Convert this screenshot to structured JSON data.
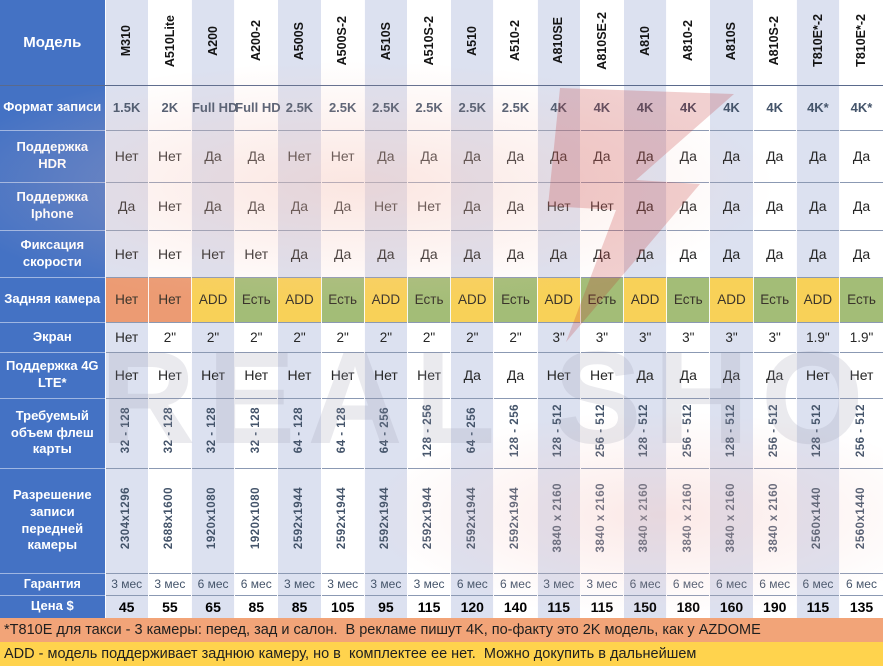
{
  "chart_data": {
    "type": "table",
    "title": "Сравнение моделей видеорегистраторов",
    "corner_label": "Модель",
    "columns": [
      "M310",
      "A510Lite",
      "A200",
      "A200-2",
      "A500S",
      "A500S-2",
      "A510S",
      "A510S-2",
      "A510",
      "A510-2",
      "A810SE",
      "A810SE-2",
      "A810",
      "A810-2",
      "A810S",
      "A810S-2",
      "T810E*-2",
      "T810E*-2"
    ],
    "rows": [
      {
        "label": "Формат записи",
        "type": "format",
        "values": [
          "1.5K",
          "2K",
          "Full HD",
          "Full HD",
          "2.5K",
          "2.5K",
          "2.5K",
          "2.5K",
          "2.5K",
          "2.5K",
          "4K",
          "4K",
          "4K",
          "4K",
          "4K",
          "4K",
          "4K*",
          "4K*"
        ]
      },
      {
        "label": "Поддержка HDR",
        "type": "hdr",
        "values": [
          "Нет",
          "Нет",
          "Да",
          "Да",
          "Нет",
          "Нет",
          "Да",
          "Да",
          "Да",
          "Да",
          "Да",
          "Да",
          "Да",
          "Да",
          "Да",
          "Да",
          "Да",
          "Да"
        ]
      },
      {
        "label": "Поддержка Iphone",
        "type": "iphone",
        "values": [
          "Да",
          "Нет",
          "Да",
          "Да",
          "Да",
          "Да",
          "Нет",
          "Нет",
          "Да",
          "Да",
          "Нет",
          "Нет",
          "Да",
          "Да",
          "Да",
          "Да",
          "Да",
          "Да"
        ]
      },
      {
        "label": "Фиксация скорости",
        "type": "speed",
        "values": [
          "Нет",
          "Нет",
          "Нет",
          "Нет",
          "Да",
          "Да",
          "Да",
          "Да",
          "Да",
          "Да",
          "Да",
          "Да",
          "Да",
          "Да",
          "Да",
          "Да",
          "Да",
          "Да"
        ]
      },
      {
        "label": "Задняя камера",
        "type": "camera",
        "values": [
          "Нет",
          "Нет",
          "ADD",
          "Есть",
          "ADD",
          "Есть",
          "ADD",
          "Есть",
          "ADD",
          "Есть",
          "ADD",
          "Есть",
          "ADD",
          "Есть",
          "ADD",
          "Есть",
          "ADD",
          "Есть"
        ],
        "cell_colors": {
          "Нет": "#ec9b73",
          "ADD": "#f8d158",
          "Есть": "#a3bd77"
        }
      },
      {
        "label": "Экран",
        "type": "screen",
        "values": [
          "Нет",
          "2\"",
          "2\"",
          "2\"",
          "2\"",
          "2\"",
          "2\"",
          "2\"",
          "2\"",
          "2\"",
          "3\"",
          "3\"",
          "3\"",
          "3\"",
          "3\"",
          "3\"",
          "1.9\"",
          "1.9\""
        ]
      },
      {
        "label": "Поддержка 4G LTE*",
        "type": "lte",
        "values": [
          "Нет",
          "Нет",
          "Нет",
          "Нет",
          "Нет",
          "Нет",
          "Нет",
          "Нет",
          "Да",
          "Да",
          "Нет",
          "Нет",
          "Да",
          "Да",
          "Да",
          "Да",
          "Нет",
          "Нет"
        ]
      },
      {
        "label": "Требуемый объем флеш карты",
        "type": "flash",
        "vertical": true,
        "values": [
          "32 - 128",
          "32 - 128",
          "32 - 128",
          "32 - 128",
          "64 - 128",
          "64 - 128",
          "64 - 256",
          "128 - 256",
          "64 - 256",
          "128 - 256",
          "128 - 512",
          "256 - 512",
          "128 - 512",
          "256 - 512",
          "128 - 512",
          "256 - 512",
          "128 - 512",
          "256 - 512"
        ]
      },
      {
        "label": "Разрешение записи передней камеры",
        "type": "res",
        "vertical": true,
        "values": [
          "2304x1296",
          "2688x1600",
          "1920x1080",
          "1920x1080",
          "2592x1944",
          "2592x1944",
          "2592x1944",
          "2592x1944",
          "2592x1944",
          "2592x1944",
          "3840 x 2160",
          "3840 x 2160",
          "3840 x 2160",
          "3840 x 2160",
          "3840 x 2160",
          "3840 x 2160",
          "2560x1440",
          "2560x1440"
        ]
      },
      {
        "label": "Гарантия",
        "type": "warranty",
        "values": [
          "3 мес",
          "3 мес",
          "6 мес",
          "6 мес",
          "3 мес",
          "3 мес",
          "3 мес",
          "3 мес",
          "6 мес",
          "6 мес",
          "3 мес",
          "3 мес",
          "6 мес",
          "6 мес",
          "6 мес",
          "6 мес",
          "6 мес",
          "6 мес"
        ]
      },
      {
        "label": "Цена $",
        "type": "price",
        "values": [
          "45",
          "55",
          "65",
          "85",
          "85",
          "105",
          "95",
          "115",
          "120",
          "140",
          "115",
          "115",
          "150",
          "180",
          "160",
          "190",
          "115",
          "135"
        ]
      }
    ],
    "footnotes": [
      {
        "text": "*T810E для такси - 3 камеры: перед, зад и салон.  В рекламе пишут 4K, по-факту это 2K модель, как у AZDOME",
        "bg": "#f2a478"
      },
      {
        "text": "ADD - модель поддерживает заднюю камеру, но в  комплектее ее нет.  Можно докупить в дальнейшем",
        "bg": "#ffd34d"
      }
    ]
  },
  "watermark": {
    "text": "REAL SHOP",
    "logo_color": "#c02a28"
  },
  "colors": {
    "header_blue": "#4472c4",
    "shaded_column": "#dce1f0",
    "camera_no": "#ec9b73",
    "camera_add": "#f8d158",
    "camera_yes": "#a3bd77",
    "footnote1_bg": "#f2a478",
    "footnote2_bg": "#ffd34d"
  }
}
